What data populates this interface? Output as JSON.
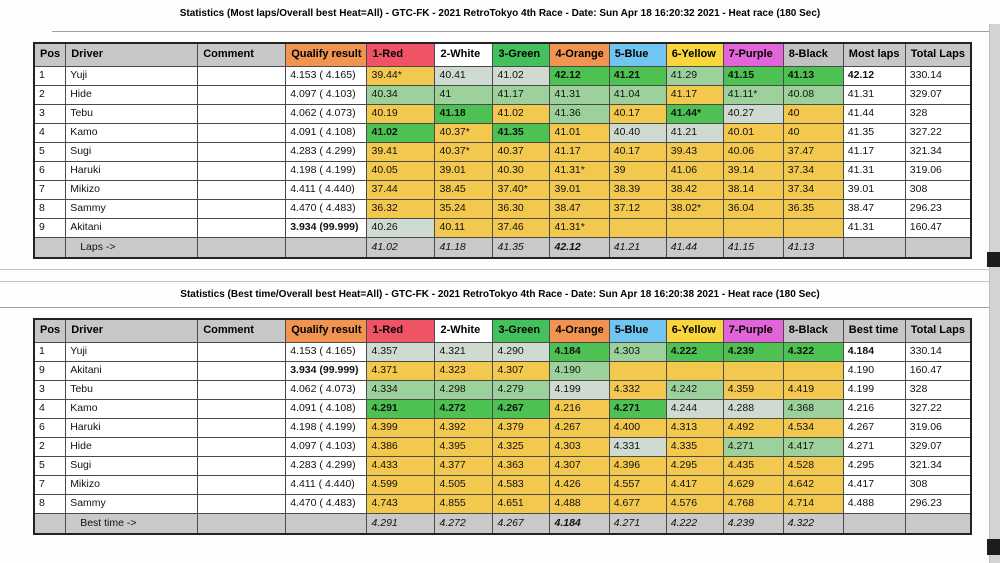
{
  "colors": {
    "header": [
      "#c7c7c7",
      "#c7c7c7",
      "#c7c7c7",
      "#f19351",
      "#f05366",
      "#ffffff",
      "#42c15c",
      "#f19351",
      "#70c6f0",
      "#f9d63d",
      "#e264d9",
      "#c2c2c2",
      "#c7c7c7",
      "#c7c7c7"
    ],
    "cell": {
      "best": "#4dc253",
      "good": "#9cd19c",
      "pale": "#cfdbd0",
      "slow": "#f2c84e",
      "white": "#ffffff"
    },
    "footer_gray": "#c9c9c9"
  },
  "tables": [
    {
      "title": "Statistics (Most laps/Overall best Heat=All) - GTC-FK - 2021 RetroTokyo 4th Race - Date: Sun Apr 18 16:20:32 2021 - Heat race (180 Sec)",
      "columns": [
        "Pos",
        "Driver",
        "Comment",
        "Qualify result",
        "1-Red",
        "2-White",
        "3-Green",
        "4-Orange",
        "5-Blue",
        "6-Yellow",
        "7-Purple",
        "8-Black",
        "Most laps",
        "Total Laps"
      ],
      "rows": [
        {
          "pos": "1",
          "driver": "Yuji",
          "comment": "",
          "qualify": "4.153 ( 4.165)",
          "heats": [
            {
              "v": "39.44*",
              "c": "slow"
            },
            {
              "v": "40.41",
              "c": "pale"
            },
            {
              "v": "41.02",
              "c": "pale"
            },
            {
              "v": "42.12",
              "c": "best",
              "b": true
            },
            {
              "v": "41.21",
              "c": "best",
              "b": true
            },
            {
              "v": "41.29",
              "c": "good"
            },
            {
              "v": "41.15",
              "c": "best",
              "b": true
            },
            {
              "v": "41.13",
              "c": "best",
              "b": true
            }
          ],
          "result": "42.12",
          "result_bold": true,
          "total": "330.14"
        },
        {
          "pos": "2",
          "driver": "Hide",
          "comment": "",
          "qualify": "4.097 ( 4.103)",
          "heats": [
            {
              "v": "40.34",
              "c": "good"
            },
            {
              "v": "41",
              "c": "good"
            },
            {
              "v": "41.17",
              "c": "good"
            },
            {
              "v": "41.31",
              "c": "good"
            },
            {
              "v": "41.04",
              "c": "good"
            },
            {
              "v": "41.17",
              "c": "slow"
            },
            {
              "v": "41.11*",
              "c": "good"
            },
            {
              "v": "40.08",
              "c": "good"
            }
          ],
          "result": "41.31",
          "total": "329.07"
        },
        {
          "pos": "3",
          "driver": "Tebu",
          "comment": "",
          "qualify": "4.062 ( 4.073)",
          "heats": [
            {
              "v": "40.19",
              "c": "slow"
            },
            {
              "v": "41.18",
              "c": "best",
              "b": true
            },
            {
              "v": "41.02",
              "c": "slow"
            },
            {
              "v": "41.36",
              "c": "good"
            },
            {
              "v": "40.17",
              "c": "slow"
            },
            {
              "v": "41.44*",
              "c": "best",
              "b": true
            },
            {
              "v": "40.27",
              "c": "pale"
            },
            {
              "v": "40",
              "c": "slow"
            }
          ],
          "result": "41.44",
          "total": "328"
        },
        {
          "pos": "4",
          "driver": "Kamo",
          "comment": "",
          "qualify": "4.091 ( 4.108)",
          "heats": [
            {
              "v": "41.02",
              "c": "best",
              "b": true
            },
            {
              "v": "40.37*",
              "c": "slow"
            },
            {
              "v": "41.35",
              "c": "best",
              "b": true
            },
            {
              "v": "41.01",
              "c": "slow"
            },
            {
              "v": "40.40",
              "c": "pale"
            },
            {
              "v": "41.21",
              "c": "pale"
            },
            {
              "v": "40.01",
              "c": "slow"
            },
            {
              "v": "40",
              "c": "slow"
            }
          ],
          "result": "41.35",
          "total": "327.22"
        },
        {
          "pos": "5",
          "driver": "Sugi",
          "comment": "",
          "qualify": "4.283 ( 4.299)",
          "heats": [
            {
              "v": "39.41",
              "c": "slow"
            },
            {
              "v": "40.37*",
              "c": "slow"
            },
            {
              "v": "40.37",
              "c": "slow"
            },
            {
              "v": "41.17",
              "c": "slow"
            },
            {
              "v": "40.17",
              "c": "slow"
            },
            {
              "v": "39.43",
              "c": "slow"
            },
            {
              "v": "40.06",
              "c": "slow"
            },
            {
              "v": "37.47",
              "c": "slow"
            }
          ],
          "result": "41.17",
          "total": "321.34"
        },
        {
          "pos": "6",
          "driver": "Haruki",
          "comment": "",
          "qualify": "4.198 ( 4.199)",
          "heats": [
            {
              "v": "40.05",
              "c": "slow"
            },
            {
              "v": "39.01",
              "c": "slow"
            },
            {
              "v": "40.30",
              "c": "slow"
            },
            {
              "v": "41.31*",
              "c": "slow"
            },
            {
              "v": "39",
              "c": "slow"
            },
            {
              "v": "41.06",
              "c": "slow"
            },
            {
              "v": "39.14",
              "c": "slow"
            },
            {
              "v": "37.34",
              "c": "slow"
            }
          ],
          "result": "41.31",
          "total": "319.06"
        },
        {
          "pos": "7",
          "driver": "Mikizo",
          "comment": "",
          "qualify": "4.411 ( 4.440)",
          "heats": [
            {
              "v": "37.44",
              "c": "slow"
            },
            {
              "v": "38.45",
              "c": "slow"
            },
            {
              "v": "37.40*",
              "c": "slow"
            },
            {
              "v": "39.01",
              "c": "slow"
            },
            {
              "v": "38.39",
              "c": "slow"
            },
            {
              "v": "38.42",
              "c": "slow"
            },
            {
              "v": "38.14",
              "c": "slow"
            },
            {
              "v": "37.34",
              "c": "slow"
            }
          ],
          "result": "39.01",
          "total": "308"
        },
        {
          "pos": "8",
          "driver": "Sammy",
          "comment": "",
          "qualify": "4.470 ( 4.483)",
          "heats": [
            {
              "v": "36.32",
              "c": "slow"
            },
            {
              "v": "35.24",
              "c": "slow"
            },
            {
              "v": "36.30",
              "c": "slow"
            },
            {
              "v": "38.47",
              "c": "slow"
            },
            {
              "v": "37.12",
              "c": "slow"
            },
            {
              "v": "38.02*",
              "c": "slow"
            },
            {
              "v": "36.04",
              "c": "slow"
            },
            {
              "v": "36.35",
              "c": "slow"
            }
          ],
          "result": "38.47",
          "total": "296.23"
        },
        {
          "pos": "9",
          "driver": "Akitani",
          "comment": "",
          "qualify": "3.934 (99.999)",
          "qualify_bold": true,
          "heats": [
            {
              "v": "40.26",
              "c": "pale"
            },
            {
              "v": "40.11",
              "c": "slow"
            },
            {
              "v": "37.46",
              "c": "slow"
            },
            {
              "v": "41.31*",
              "c": "slow"
            },
            {
              "v": "",
              "c": "slow"
            },
            {
              "v": "",
              "c": "slow"
            },
            {
              "v": "",
              "c": "slow"
            },
            {
              "v": "",
              "c": "slow"
            }
          ],
          "result": "41.31",
          "total": "160.47"
        }
      ],
      "footer": {
        "label": "Laps ->",
        "values": [
          {
            "v": "41.02"
          },
          {
            "v": "41.18"
          },
          {
            "v": "41.35"
          },
          {
            "v": "42.12",
            "b": true
          },
          {
            "v": "41.21"
          },
          {
            "v": "41.44"
          },
          {
            "v": "41.15"
          },
          {
            "v": "41.13"
          }
        ]
      }
    },
    {
      "title": "Statistics (Best time/Overall best Heat=All) - GTC-FK - 2021 RetroTokyo 4th Race - Date: Sun Apr 18 16:20:38 2021 - Heat race (180 Sec)",
      "columns": [
        "Pos",
        "Driver",
        "Comment",
        "Qualify result",
        "1-Red",
        "2-White",
        "3-Green",
        "4-Orange",
        "5-Blue",
        "6-Yellow",
        "7-Purple",
        "8-Black",
        "Best time",
        "Total Laps"
      ],
      "rows": [
        {
          "pos": "1",
          "driver": "Yuji",
          "comment": "",
          "qualify": "4.153 ( 4.165)",
          "heats": [
            {
              "v": "4.357",
              "c": "pale"
            },
            {
              "v": "4.321",
              "c": "pale"
            },
            {
              "v": "4.290",
              "c": "pale"
            },
            {
              "v": "4.184",
              "c": "best",
              "b": true
            },
            {
              "v": "4.303",
              "c": "good"
            },
            {
              "v": "4.222",
              "c": "best",
              "b": true
            },
            {
              "v": "4.239",
              "c": "best",
              "b": true
            },
            {
              "v": "4.322",
              "c": "best",
              "b": true
            }
          ],
          "result": "4.184",
          "result_bold": true,
          "total": "330.14"
        },
        {
          "pos": "9",
          "driver": "Akitani",
          "comment": "",
          "qualify": "3.934 (99.999)",
          "qualify_bold": true,
          "heats": [
            {
              "v": "4.371",
              "c": "slow"
            },
            {
              "v": "4.323",
              "c": "slow"
            },
            {
              "v": "4.307",
              "c": "slow"
            },
            {
              "v": "4.190",
              "c": "good"
            },
            {
              "v": "",
              "c": "slow"
            },
            {
              "v": "",
              "c": "slow"
            },
            {
              "v": "",
              "c": "slow"
            },
            {
              "v": "",
              "c": "slow"
            }
          ],
          "result": "4.190",
          "total": "160.47"
        },
        {
          "pos": "3",
          "driver": "Tebu",
          "comment": "",
          "qualify": "4.062 ( 4.073)",
          "heats": [
            {
              "v": "4.334",
              "c": "good"
            },
            {
              "v": "4.298",
              "c": "good"
            },
            {
              "v": "4.279",
              "c": "good"
            },
            {
              "v": "4.199",
              "c": "pale"
            },
            {
              "v": "4.332",
              "c": "slow"
            },
            {
              "v": "4.242",
              "c": "good"
            },
            {
              "v": "4.359",
              "c": "slow"
            },
            {
              "v": "4.419",
              "c": "slow"
            }
          ],
          "result": "4.199",
          "total": "328"
        },
        {
          "pos": "4",
          "driver": "Kamo",
          "comment": "",
          "qualify": "4.091 ( 4.108)",
          "heats": [
            {
              "v": "4.291",
              "c": "best",
              "b": true
            },
            {
              "v": "4.272",
              "c": "best",
              "b": true
            },
            {
              "v": "4.267",
              "c": "best",
              "b": true
            },
            {
              "v": "4.216",
              "c": "slow"
            },
            {
              "v": "4.271",
              "c": "best",
              "b": true
            },
            {
              "v": "4.244",
              "c": "pale"
            },
            {
              "v": "4.288",
              "c": "pale"
            },
            {
              "v": "4.368",
              "c": "good"
            }
          ],
          "result": "4.216",
          "total": "327.22"
        },
        {
          "pos": "6",
          "driver": "Haruki",
          "comment": "",
          "qualify": "4.198 ( 4.199)",
          "heats": [
            {
              "v": "4.399",
              "c": "slow"
            },
            {
              "v": "4.392",
              "c": "slow"
            },
            {
              "v": "4.379",
              "c": "slow"
            },
            {
              "v": "4.267",
              "c": "slow"
            },
            {
              "v": "4.400",
              "c": "slow"
            },
            {
              "v": "4.313",
              "c": "slow"
            },
            {
              "v": "4.492",
              "c": "slow"
            },
            {
              "v": "4.534",
              "c": "slow"
            }
          ],
          "result": "4.267",
          "total": "319.06"
        },
        {
          "pos": "2",
          "driver": "Hide",
          "comment": "",
          "qualify": "4.097 ( 4.103)",
          "heats": [
            {
              "v": "4.386",
              "c": "slow"
            },
            {
              "v": "4.395",
              "c": "slow"
            },
            {
              "v": "4.325",
              "c": "slow"
            },
            {
              "v": "4.303",
              "c": "slow"
            },
            {
              "v": "4.331",
              "c": "pale"
            },
            {
              "v": "4.335",
              "c": "slow"
            },
            {
              "v": "4.271",
              "c": "good"
            },
            {
              "v": "4.417",
              "c": "good"
            }
          ],
          "result": "4.271",
          "total": "329.07"
        },
        {
          "pos": "5",
          "driver": "Sugi",
          "comment": "",
          "qualify": "4.283 ( 4.299)",
          "heats": [
            {
              "v": "4.433",
              "c": "slow"
            },
            {
              "v": "4.377",
              "c": "slow"
            },
            {
              "v": "4.363",
              "c": "slow"
            },
            {
              "v": "4.307",
              "c": "slow"
            },
            {
              "v": "4.396",
              "c": "slow"
            },
            {
              "v": "4.295",
              "c": "slow"
            },
            {
              "v": "4.435",
              "c": "slow"
            },
            {
              "v": "4.528",
              "c": "slow"
            }
          ],
          "result": "4.295",
          "total": "321.34"
        },
        {
          "pos": "7",
          "driver": "Mikizo",
          "comment": "",
          "qualify": "4.411 ( 4.440)",
          "heats": [
            {
              "v": "4.599",
              "c": "slow"
            },
            {
              "v": "4.505",
              "c": "slow"
            },
            {
              "v": "4.583",
              "c": "slow"
            },
            {
              "v": "4.426",
              "c": "slow"
            },
            {
              "v": "4.557",
              "c": "slow"
            },
            {
              "v": "4.417",
              "c": "slow"
            },
            {
              "v": "4.629",
              "c": "slow"
            },
            {
              "v": "4.642",
              "c": "slow"
            }
          ],
          "result": "4.417",
          "total": "308"
        },
        {
          "pos": "8",
          "driver": "Sammy",
          "comment": "",
          "qualify": "4.470 ( 4.483)",
          "heats": [
            {
              "v": "4.743",
              "c": "slow"
            },
            {
              "v": "4.855",
              "c": "slow"
            },
            {
              "v": "4.651",
              "c": "slow"
            },
            {
              "v": "4.488",
              "c": "slow"
            },
            {
              "v": "4.677",
              "c": "slow"
            },
            {
              "v": "4.576",
              "c": "slow"
            },
            {
              "v": "4.768",
              "c": "slow"
            },
            {
              "v": "4.714",
              "c": "slow"
            }
          ],
          "result": "4.488",
          "total": "296.23"
        }
      ],
      "footer": {
        "label": "Best time ->",
        "values": [
          {
            "v": "4.291"
          },
          {
            "v": "4.272"
          },
          {
            "v": "4.267"
          },
          {
            "v": "4.184",
            "b": true
          },
          {
            "v": "4.271"
          },
          {
            "v": "4.222"
          },
          {
            "v": "4.239"
          },
          {
            "v": "4.322"
          }
        ]
      }
    }
  ]
}
